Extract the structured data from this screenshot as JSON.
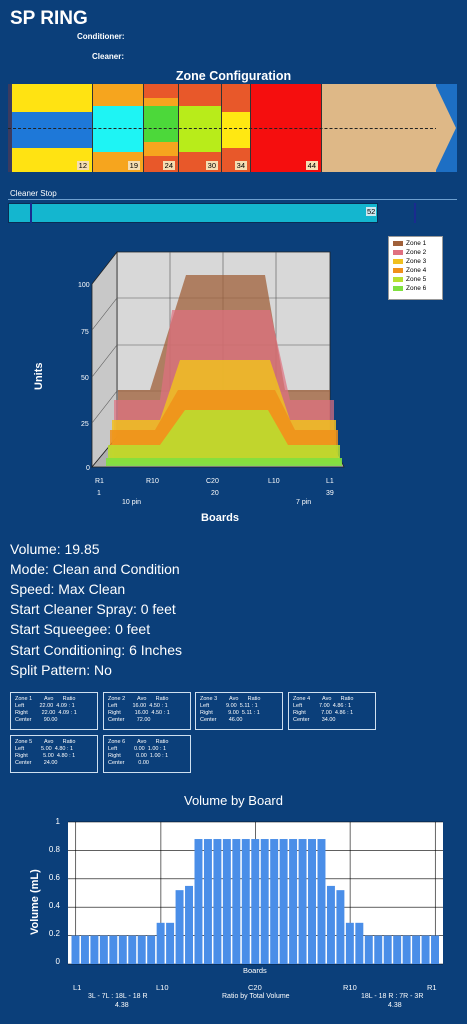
{
  "header": {
    "title": "SP RING",
    "conditioner_label": "Conditioner:",
    "cleaner_label": "Cleaner:"
  },
  "zone_config": {
    "title": "Zone Configuration",
    "labels": [
      "12",
      "19",
      "24",
      "30",
      "34",
      "44"
    ]
  },
  "cleaner_stop": {
    "label": "Cleaner Stop",
    "value": "52"
  },
  "chart3d": {
    "ylabel": "Units",
    "xlabel": "Boards",
    "yticks": [
      "100",
      "75",
      "50",
      "25",
      "0"
    ],
    "xticks": [
      "R1",
      "R10",
      "C20",
      "L10",
      "L1"
    ],
    "xnums": [
      "1",
      "20",
      "39"
    ],
    "pin_left": "10 pin",
    "pin_right": "7 pin",
    "legend": [
      "Zone 1",
      "Zone 2",
      "Zone 3",
      "Zone 4",
      "Zone 5",
      "Zone 6"
    ],
    "legend_colors": [
      "#a0603a",
      "#e07080",
      "#f0c020",
      "#f0901a",
      "#b8e030",
      "#80e040"
    ]
  },
  "info": {
    "volume": "Volume: 19.85",
    "mode": "Mode: Clean and Condition",
    "speed": "Speed: Max Clean",
    "spray": "Start Cleaner Spray: 0 feet",
    "squeegee": "Start Squeegee: 0 feet",
    "conditioning": "Start Conditioning: 6 Inches",
    "split": "Split Pattern: No"
  },
  "zone_boxes": [
    {
      "title": "Zone 1        Avo      Ratio",
      "left": "Left          22.00  4.09 : 1",
      "right": "Right         22.00  4.09 : 1",
      "center": "Center        90.00"
    },
    {
      "title": "Zone 2        Avo      Ratio",
      "left": "Left          16.00  4.50 : 1",
      "right": "Right         16.00  4.50 : 1",
      "center": "Center        72.00"
    },
    {
      "title": "Zone 3        Avo      Ratio",
      "left": "Left           9.00  5.11 : 1",
      "right": "Right          9.00  5.11 : 1",
      "center": "Center        46.00"
    },
    {
      "title": "Zone 4        Avo      Ratio",
      "left": "Left           7.00  4.86 : 1",
      "right": "Right          7.00  4.86 : 1",
      "center": "Center        34.00"
    },
    {
      "title": "Zone 5        Avo      Ratio",
      "left": "Left           5.00  4.80 : 1",
      "right": "Right          5.00  4.80 : 1",
      "center": "Center        24.00"
    },
    {
      "title": "Zone 6        Avo      Ratio",
      "left": "Left           0.00  1.00 : 1",
      "right": "Right          0.00  1.00 : 1",
      "center": "Center         0.00"
    }
  ],
  "chart_data": {
    "type": "bar",
    "title": "Volume by Board",
    "ylabel": "Volume (mL)",
    "xlabel": "Boards",
    "ylim": [
      0,
      1
    ],
    "yticks": [
      "1",
      "0.8",
      "0.6",
      "0.4",
      "0.2",
      "0"
    ],
    "xticks": [
      "L1",
      "L10",
      "C20",
      "R10",
      "R1"
    ],
    "values": [
      0.2,
      0.2,
      0.2,
      0.2,
      0.2,
      0.2,
      0.2,
      0.2,
      0.2,
      0.29,
      0.29,
      0.52,
      0.55,
      0.88,
      0.88,
      0.88,
      0.88,
      0.88,
      0.88,
      0.88,
      0.88,
      0.88,
      0.88,
      0.88,
      0.88,
      0.88,
      0.88,
      0.55,
      0.52,
      0.29,
      0.29,
      0.2,
      0.2,
      0.2,
      0.2,
      0.2,
      0.2,
      0.2,
      0.2
    ],
    "footer_left": "3L - 7L : 18L - 18 R",
    "footer_left_val": "4.38",
    "footer_center": "Ratio by Total Volume",
    "footer_right": "18L - 18 R : 7R - 3R",
    "footer_right_val": "4.38",
    "bar_color": "#4a8ee8"
  }
}
